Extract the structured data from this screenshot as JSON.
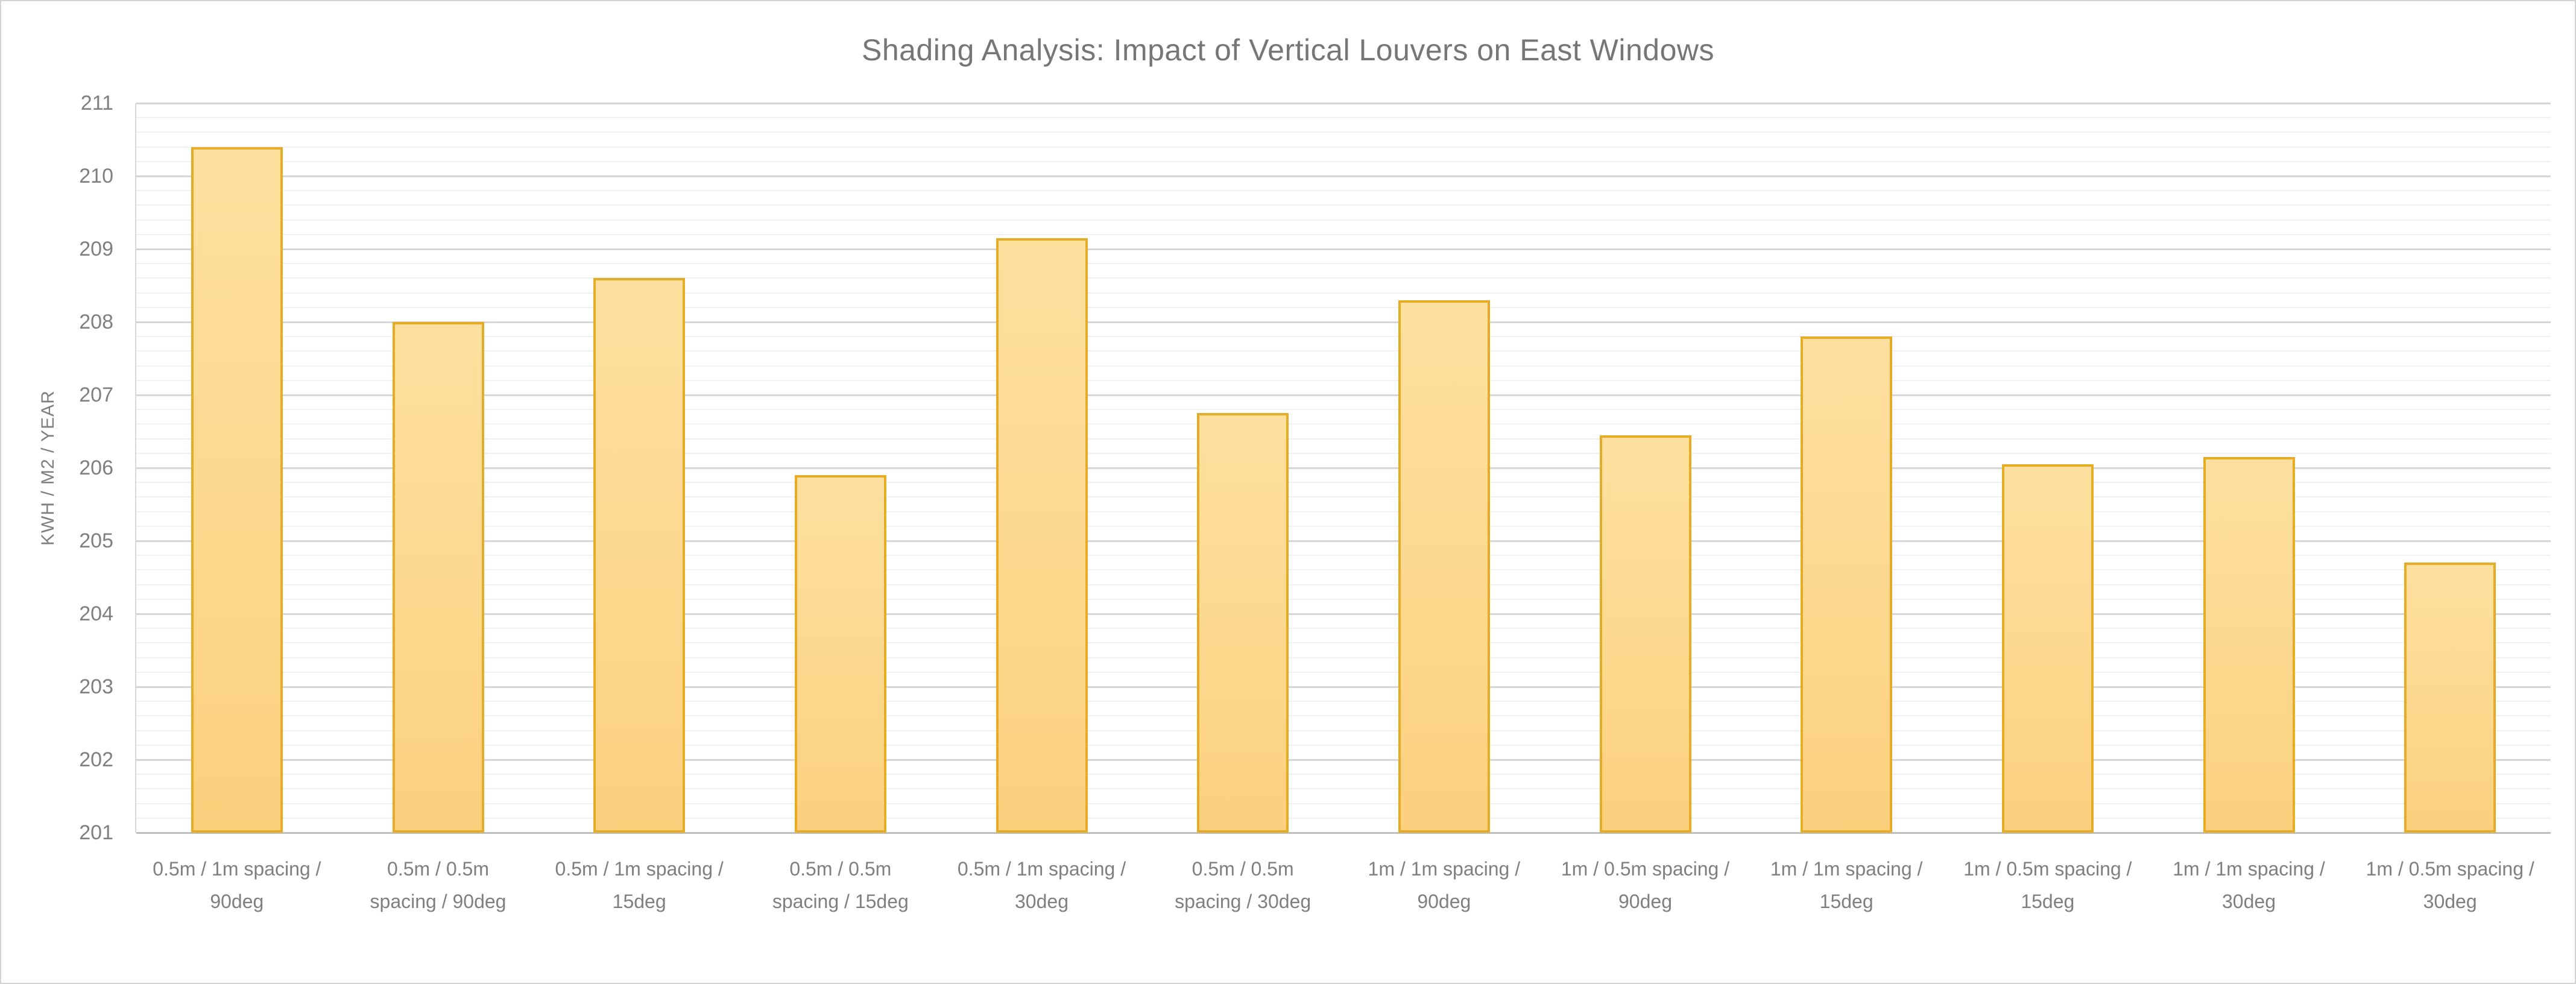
{
  "chart_data": {
    "type": "bar",
    "title": "Shading Analysis: Impact of Vertical Louvers on East Windows",
    "xlabel": "",
    "ylabel": "KWH / M2 / YEAR",
    "ylim": [
      201,
      211
    ],
    "ytick_step": 1,
    "minor_gridline_step": 0.2,
    "grid": true,
    "legend": "none",
    "yticks": [
      201,
      202,
      203,
      204,
      205,
      206,
      207,
      208,
      209,
      210,
      211
    ],
    "categories": [
      "0.5m / 1m spacing / 90deg",
      "0.5m / 0.5m spacing / 90deg",
      "0.5m / 1m spacing / 15deg",
      "0.5m / 0.5m spacing / 15deg",
      "0.5m / 1m spacing / 30deg",
      "0.5m / 0.5m spacing / 30deg",
      "1m / 1m spacing / 90deg",
      "1m / 0.5m spacing / 90deg",
      "1m / 1m spacing / 15deg",
      "1m / 0.5m spacing / 15deg",
      "1m / 1m spacing / 30deg",
      "1m / 0.5m spacing / 30deg"
    ],
    "values": [
      210.4,
      208.0,
      208.6,
      205.9,
      209.15,
      206.75,
      208.3,
      206.45,
      207.8,
      206.05,
      206.15,
      204.7
    ],
    "colors": {
      "bar_fill_top": "#fde09f",
      "bar_fill_bottom": "#fbd07d",
      "bar_border": "#e6ac25",
      "gridline_major": "#d6d6d6",
      "gridline_minor": "#f1f1f1",
      "axis_line": "#bfbfbf",
      "text": "#7f7f7f",
      "title_text": "#767676",
      "frame_border": "#d2d2d2",
      "background": "#ffffff"
    }
  }
}
